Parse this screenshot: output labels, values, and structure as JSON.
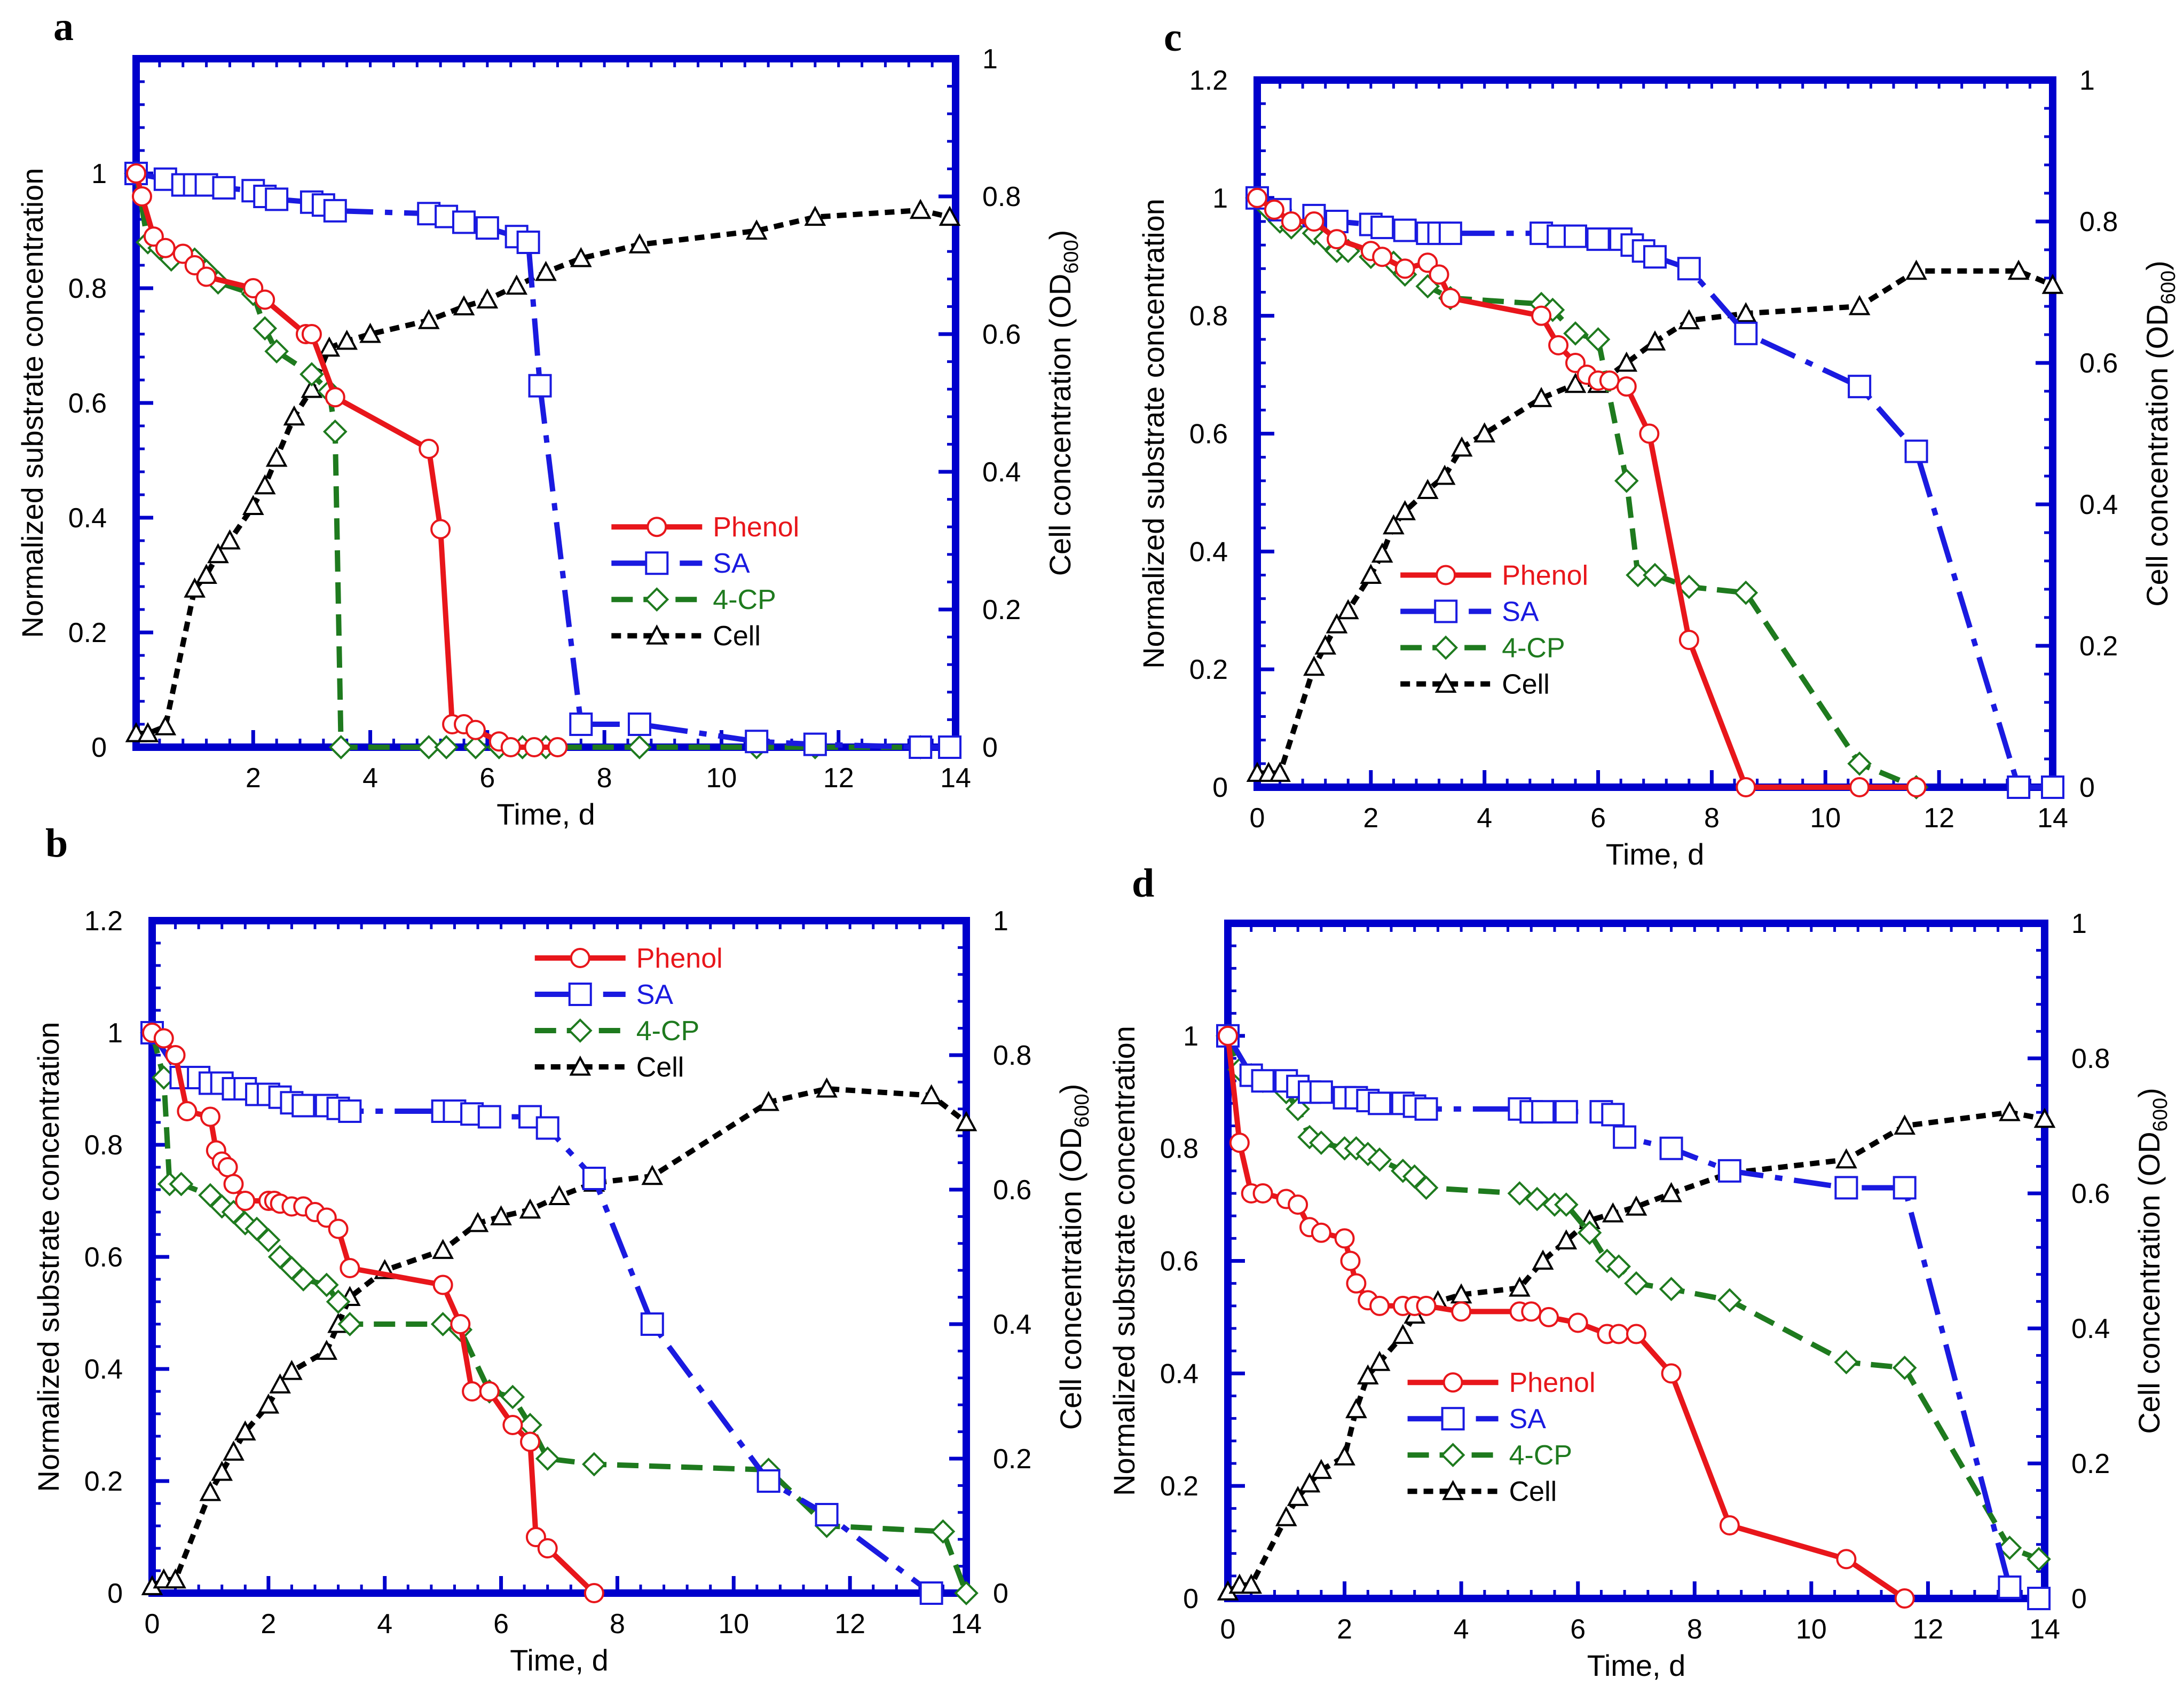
{
  "colors": {
    "frame": "#0000cc",
    "phenol": "#e8161b",
    "sa": "#1a1ae0",
    "cp4": "#1e7a1e",
    "cell": "#000000"
  },
  "chart_data": [
    {
      "panel": "a",
      "type": "line",
      "xlabel": "Time, d",
      "ylabel": "Normalized substrate concentration",
      "y2label": "Cell concentration (OD",
      "y2label_sub": "600",
      "y2label_end": ")",
      "xlim": [
        0,
        14
      ],
      "ylim": [
        0,
        1.2
      ],
      "y2lim": [
        0,
        1
      ],
      "xticks": [
        2,
        4,
        6,
        8,
        10,
        12,
        14
      ],
      "yticks": [
        0,
        0.2,
        0.4,
        0.6,
        0.8,
        1
      ],
      "y2ticks": [
        0,
        0.2,
        0.4,
        0.6,
        0.8,
        1
      ],
      "legend_position": "lower-right",
      "series": [
        {
          "name": "Phenol",
          "axis": "left",
          "x": [
            0,
            0.1,
            0.3,
            0.5,
            0.8,
            1,
            1.2,
            2,
            2.2,
            2.9,
            3,
            3.4,
            5,
            5.2,
            5.4,
            5.6,
            5.8,
            6.2,
            6.4,
            6.8,
            7.2
          ],
          "values": [
            1,
            0.96,
            0.89,
            0.87,
            0.86,
            0.84,
            0.82,
            0.8,
            0.78,
            0.72,
            0.72,
            0.61,
            0.52,
            0.38,
            0.04,
            0.04,
            0.03,
            0.01,
            0,
            0,
            0
          ]
        },
        {
          "name": "SA",
          "axis": "left",
          "x": [
            0,
            0.5,
            0.8,
            1,
            1.2,
            1.5,
            2,
            2.2,
            2.4,
            3,
            3.2,
            3.4,
            5,
            5.3,
            5.6,
            6,
            6.5,
            6.7,
            6.9,
            7.6,
            8.6,
            10.6,
            11.6,
            13.4,
            13.9
          ],
          "values": [
            1,
            0.99,
            0.98,
            0.98,
            0.98,
            0.975,
            0.97,
            0.96,
            0.955,
            0.95,
            0.945,
            0.935,
            0.93,
            0.925,
            0.915,
            0.905,
            0.89,
            0.88,
            0.63,
            0.04,
            0.04,
            0.01,
            0.005,
            0,
            0
          ]
        },
        {
          "name": "4-CP",
          "axis": "left",
          "x": [
            0,
            0.2,
            0.4,
            0.6,
            1,
            1.2,
            1.4,
            2,
            2.2,
            2.4,
            3,
            3.3,
            3.4,
            3.5,
            5,
            5.3,
            5.8,
            6.2,
            6.6,
            7,
            8.6,
            10.6,
            11.6,
            13.4
          ],
          "values": [
            1,
            0.88,
            0.87,
            0.85,
            0.85,
            0.83,
            0.81,
            0.79,
            0.73,
            0.69,
            0.65,
            0.62,
            0.55,
            0,
            0,
            0,
            0,
            0,
            0,
            0,
            0,
            0,
            0,
            0
          ]
        },
        {
          "name": "Cell",
          "axis": "right",
          "x": [
            0,
            0.2,
            0.5,
            1,
            1.2,
            1.4,
            1.6,
            2,
            2.2,
            2.4,
            2.7,
            3,
            3.3,
            3.6,
            4,
            5,
            5.6,
            6,
            6.5,
            7,
            7.6,
            8.6,
            10.6,
            11.6,
            13.4,
            13.9
          ],
          "values": [
            0.02,
            0.02,
            0.03,
            0.23,
            0.25,
            0.28,
            0.3,
            0.35,
            0.38,
            0.42,
            0.48,
            0.52,
            0.58,
            0.59,
            0.6,
            0.62,
            0.64,
            0.65,
            0.67,
            0.69,
            0.71,
            0.73,
            0.75,
            0.77,
            0.78,
            0.77
          ]
        }
      ]
    },
    {
      "panel": "b",
      "type": "line",
      "xlabel": "Time, d",
      "ylabel": "Normalized substrate concentration",
      "y2label": "Cell concentration (OD",
      "y2label_sub": "600",
      "y2label_end": ")",
      "xlim": [
        0,
        14
      ],
      "ylim": [
        0,
        1.2
      ],
      "y2lim": [
        0,
        1
      ],
      "xticks": [
        0,
        2,
        4,
        6,
        8,
        10,
        12,
        14
      ],
      "yticks": [
        0,
        0.2,
        0.4,
        0.6,
        0.8,
        1,
        1.2
      ],
      "y2ticks": [
        0,
        0.2,
        0.4,
        0.6,
        0.8,
        1
      ],
      "legend_position": "top-right",
      "series": [
        {
          "name": "Phenol",
          "axis": "left",
          "x": [
            0,
            0.2,
            0.4,
            0.6,
            1,
            1.1,
            1.2,
            1.3,
            1.4,
            1.6,
            2,
            2.1,
            2.2,
            2.4,
            2.6,
            2.8,
            3,
            3.2,
            3.4,
            5,
            5.3,
            5.5,
            5.8,
            6.2,
            6.5,
            6.6,
            6.8,
            7.6
          ],
          "values": [
            1,
            0.99,
            0.96,
            0.86,
            0.85,
            0.79,
            0.77,
            0.76,
            0.73,
            0.7,
            0.7,
            0.7,
            0.695,
            0.69,
            0.69,
            0.68,
            0.67,
            0.65,
            0.58,
            0.55,
            0.48,
            0.36,
            0.36,
            0.3,
            0.27,
            0.1,
            0.08,
            0
          ]
        },
        {
          "name": "SA",
          "axis": "left",
          "x": [
            0,
            0.5,
            0.8,
            1,
            1.2,
            1.4,
            1.6,
            1.8,
            2,
            2.2,
            2.4,
            2.6,
            3,
            3.2,
            3.4,
            5,
            5.2,
            5.5,
            5.8,
            6.5,
            6.8,
            7.6,
            8.6,
            10.6,
            11.6,
            13.4
          ],
          "values": [
            1,
            0.92,
            0.92,
            0.91,
            0.91,
            0.9,
            0.9,
            0.89,
            0.89,
            0.885,
            0.875,
            0.87,
            0.87,
            0.865,
            0.86,
            0.86,
            0.86,
            0.855,
            0.85,
            0.85,
            0.83,
            0.74,
            0.48,
            0.2,
            0.14,
            0
          ]
        },
        {
          "name": "4-CP",
          "axis": "left",
          "x": [
            0,
            0.2,
            0.3,
            0.5,
            1,
            1.2,
            1.4,
            1.6,
            1.8,
            2,
            2.2,
            2.4,
            2.6,
            3,
            3.2,
            3.4,
            5,
            5.3,
            5.8,
            6.2,
            6.5,
            6.8,
            7.6,
            10.6,
            11.6,
            13.6,
            14
          ],
          "values": [
            1,
            0.92,
            0.73,
            0.73,
            0.71,
            0.69,
            0.68,
            0.66,
            0.65,
            0.63,
            0.6,
            0.58,
            0.56,
            0.55,
            0.52,
            0.48,
            0.48,
            0.47,
            0.36,
            0.35,
            0.3,
            0.24,
            0.23,
            0.22,
            0.12,
            0.11,
            0
          ]
        },
        {
          "name": "Cell",
          "axis": "right",
          "x": [
            0,
            0.2,
            0.4,
            1,
            1.2,
            1.4,
            1.6,
            2,
            2.2,
            2.4,
            3,
            3.2,
            3.4,
            4,
            5,
            5.6,
            6,
            6.5,
            7,
            7.6,
            8.6,
            10.6,
            11.6,
            13.4,
            14
          ],
          "values": [
            0.01,
            0.02,
            0.02,
            0.15,
            0.18,
            0.21,
            0.24,
            0.28,
            0.31,
            0.33,
            0.36,
            0.4,
            0.44,
            0.48,
            0.51,
            0.55,
            0.56,
            0.57,
            0.59,
            0.61,
            0.62,
            0.73,
            0.75,
            0.74,
            0.7
          ]
        }
      ]
    },
    {
      "panel": "c",
      "type": "line",
      "xlabel": "Time, d",
      "ylabel": "Normalized substrate concentration",
      "y2label": "Cell concentration (OD",
      "y2label_sub": "600",
      "y2label_end": ")",
      "xlim": [
        0,
        14
      ],
      "ylim": [
        0,
        1.2
      ],
      "y2lim": [
        0,
        1
      ],
      "xticks": [
        0,
        2,
        4,
        6,
        8,
        10,
        12,
        14
      ],
      "yticks": [
        0,
        0.2,
        0.4,
        0.6,
        0.8,
        1,
        1.2
      ],
      "y2ticks": [
        0,
        0.2,
        0.4,
        0.6,
        0.8,
        1
      ],
      "legend_position": "lower-left",
      "series": [
        {
          "name": "Phenol",
          "axis": "left",
          "x": [
            0,
            0.3,
            0.6,
            1,
            1.4,
            2,
            2.2,
            2.6,
            3,
            3.2,
            3.4,
            5,
            5.3,
            5.6,
            5.8,
            6,
            6.2,
            6.5,
            6.9,
            7.6,
            8.6,
            10.6,
            11.6
          ],
          "values": [
            1,
            0.98,
            0.96,
            0.96,
            0.93,
            0.91,
            0.9,
            0.88,
            0.89,
            0.87,
            0.83,
            0.8,
            0.75,
            0.72,
            0.7,
            0.69,
            0.69,
            0.68,
            0.6,
            0.25,
            0,
            0,
            0
          ]
        },
        {
          "name": "SA",
          "axis": "left",
          "x": [
            0,
            0.4,
            1,
            1.4,
            2,
            2.2,
            2.6,
            3,
            3.2,
            3.4,
            5,
            5.3,
            5.6,
            6,
            6.4,
            6.6,
            6.8,
            7,
            7.6,
            8.6,
            10.6,
            11.6,
            13.4,
            14
          ],
          "values": [
            1,
            0.98,
            0.97,
            0.96,
            0.955,
            0.95,
            0.945,
            0.94,
            0.94,
            0.94,
            0.94,
            0.935,
            0.935,
            0.93,
            0.93,
            0.92,
            0.91,
            0.9,
            0.88,
            0.77,
            0.68,
            0.57,
            0,
            0
          ]
        },
        {
          "name": "4-CP",
          "axis": "left",
          "x": [
            0,
            0.2,
            0.4,
            0.6,
            1,
            1.2,
            1.4,
            1.6,
            2,
            2.4,
            2.6,
            3,
            3.4,
            5,
            5.2,
            5.6,
            6,
            6.5,
            6.7,
            7,
            7.6,
            8.6,
            10.6,
            11.6
          ],
          "values": [
            1,
            0.98,
            0.96,
            0.95,
            0.94,
            0.93,
            0.91,
            0.91,
            0.9,
            0.89,
            0.87,
            0.85,
            0.83,
            0.82,
            0.81,
            0.77,
            0.76,
            0.52,
            0.36,
            0.36,
            0.34,
            0.33,
            0.04,
            0
          ]
        },
        {
          "name": "Cell",
          "axis": "right",
          "x": [
            0,
            0.2,
            0.4,
            1,
            1.2,
            1.4,
            1.6,
            2,
            2.2,
            2.4,
            2.6,
            3,
            3.3,
            3.6,
            4,
            5,
            5.6,
            6,
            6.5,
            7,
            7.6,
            8.6,
            10.6,
            11.6,
            13.4,
            14
          ],
          "values": [
            0.02,
            0.02,
            0.02,
            0.17,
            0.2,
            0.23,
            0.25,
            0.3,
            0.33,
            0.37,
            0.39,
            0.42,
            0.44,
            0.48,
            0.5,
            0.55,
            0.57,
            0.57,
            0.6,
            0.63,
            0.66,
            0.67,
            0.68,
            0.73,
            0.73,
            0.71
          ]
        }
      ]
    },
    {
      "panel": "d",
      "type": "line",
      "xlabel": "Time, d",
      "ylabel": "Normalized substrate concentration",
      "y2label": "Cell concentration (OD",
      "y2label_sub": "600",
      "y2label_end": ")",
      "xlim": [
        0,
        14
      ],
      "ylim": [
        0,
        1.2
      ],
      "y2lim": [
        0,
        1
      ],
      "xticks": [
        0,
        2,
        4,
        6,
        8,
        10,
        12,
        14
      ],
      "yticks": [
        0,
        0.2,
        0.4,
        0.6,
        0.8,
        1
      ],
      "y2ticks": [
        0,
        0.2,
        0.4,
        0.6,
        0.8,
        1
      ],
      "legend_position": "lower-center",
      "series": [
        {
          "name": "Phenol",
          "axis": "left",
          "x": [
            0,
            0.2,
            0.4,
            0.6,
            1,
            1.2,
            1.4,
            1.6,
            2,
            2.1,
            2.2,
            2.4,
            2.6,
            3,
            3.2,
            3.4,
            4,
            5,
            5.2,
            5.5,
            6,
            6.5,
            6.7,
            7,
            7.6,
            8.6,
            10.6,
            11.6
          ],
          "values": [
            1,
            0.81,
            0.72,
            0.72,
            0.71,
            0.7,
            0.66,
            0.65,
            0.64,
            0.6,
            0.56,
            0.53,
            0.52,
            0.52,
            0.52,
            0.52,
            0.51,
            0.51,
            0.51,
            0.5,
            0.49,
            0.47,
            0.47,
            0.47,
            0.4,
            0.13,
            0.07,
            0
          ]
        },
        {
          "name": "SA",
          "axis": "left",
          "x": [
            0,
            0.4,
            0.6,
            1,
            1.2,
            1.4,
            1.6,
            2,
            2.2,
            2.4,
            2.6,
            3,
            3.2,
            3.4,
            5,
            5.2,
            5.4,
            5.8,
            6.4,
            6.6,
            6.8,
            7.6,
            8.6,
            10.6,
            11.6,
            13.4,
            13.9
          ],
          "values": [
            1,
            0.93,
            0.92,
            0.92,
            0.91,
            0.9,
            0.9,
            0.89,
            0.89,
            0.885,
            0.88,
            0.88,
            0.875,
            0.87,
            0.87,
            0.865,
            0.865,
            0.865,
            0.865,
            0.86,
            0.82,
            0.8,
            0.76,
            0.73,
            0.73,
            0.02,
            0
          ]
        },
        {
          "name": "4-CP",
          "axis": "left",
          "x": [
            0,
            0.2,
            0.4,
            0.6,
            1,
            1.2,
            1.4,
            1.6,
            2,
            2.2,
            2.4,
            2.6,
            3,
            3.2,
            3.4,
            5,
            5.3,
            5.6,
            5.8,
            6.2,
            6.5,
            6.7,
            7,
            7.6,
            8.6,
            10.6,
            11.6,
            13.4,
            13.9
          ],
          "values": [
            1,
            0.94,
            0.93,
            0.92,
            0.9,
            0.87,
            0.82,
            0.81,
            0.8,
            0.8,
            0.79,
            0.78,
            0.76,
            0.75,
            0.73,
            0.72,
            0.71,
            0.7,
            0.7,
            0.65,
            0.6,
            0.59,
            0.56,
            0.55,
            0.53,
            0.42,
            0.41,
            0.09,
            0.07
          ]
        },
        {
          "name": "Cell",
          "axis": "right",
          "x": [
            0,
            0.2,
            0.4,
            1,
            1.2,
            1.4,
            1.6,
            2,
            2.2,
            2.4,
            2.6,
            3,
            3.2,
            3.6,
            4,
            5,
            5.4,
            5.8,
            6.2,
            6.6,
            7,
            7.6,
            8.6,
            10.6,
            11.6,
            13.4,
            14
          ],
          "values": [
            0.01,
            0.02,
            0.02,
            0.12,
            0.15,
            0.17,
            0.19,
            0.21,
            0.28,
            0.33,
            0.35,
            0.39,
            0.42,
            0.44,
            0.45,
            0.46,
            0.5,
            0.53,
            0.56,
            0.57,
            0.58,
            0.6,
            0.63,
            0.65,
            0.7,
            0.72,
            0.71
          ]
        }
      ]
    }
  ]
}
